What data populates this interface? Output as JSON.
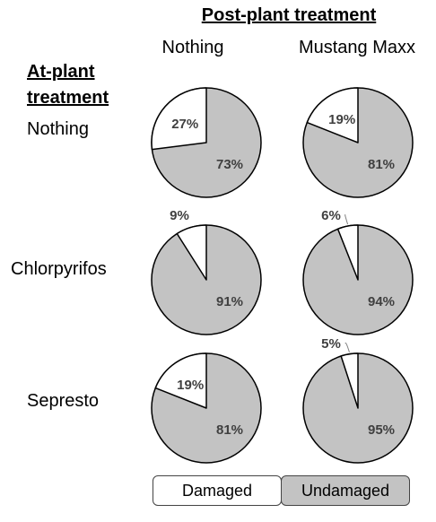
{
  "chart_data": {
    "type": "pie",
    "title": "Post-plant treatment",
    "row_header": "At-plant treatment",
    "columns": [
      "Nothing",
      "Mustang Maxx"
    ],
    "rows": [
      "Nothing",
      "Chlorpyrifos",
      "Sepresto"
    ],
    "legend": [
      {
        "label": "Damaged",
        "color": "#ffffff"
      },
      {
        "label": "Undamaged",
        "color": "#c3c3c3"
      }
    ],
    "pies": [
      {
        "row": "Nothing",
        "column": "Nothing",
        "damaged": 27,
        "undamaged": 73,
        "damaged_label": "27%",
        "undamaged_label": "73%"
      },
      {
        "row": "Nothing",
        "column": "Mustang Maxx",
        "damaged": 19,
        "undamaged": 81,
        "damaged_label": "19%",
        "undamaged_label": "81%"
      },
      {
        "row": "Chlorpyrifos",
        "column": "Nothing",
        "damaged": 9,
        "undamaged": 91,
        "damaged_label": "9%",
        "undamaged_label": "91%"
      },
      {
        "row": "Chlorpyrifos",
        "column": "Mustang Maxx",
        "damaged": 6,
        "undamaged": 94,
        "damaged_label": "6%",
        "undamaged_label": "94%"
      },
      {
        "row": "Sepresto",
        "column": "Nothing",
        "damaged": 19,
        "undamaged": 81,
        "damaged_label": "19%",
        "undamaged_label": "81%"
      },
      {
        "row": "Sepresto",
        "column": "Mustang Maxx",
        "damaged": 5,
        "undamaged": 95,
        "damaged_label": "5%",
        "undamaged_label": "95%"
      }
    ]
  }
}
